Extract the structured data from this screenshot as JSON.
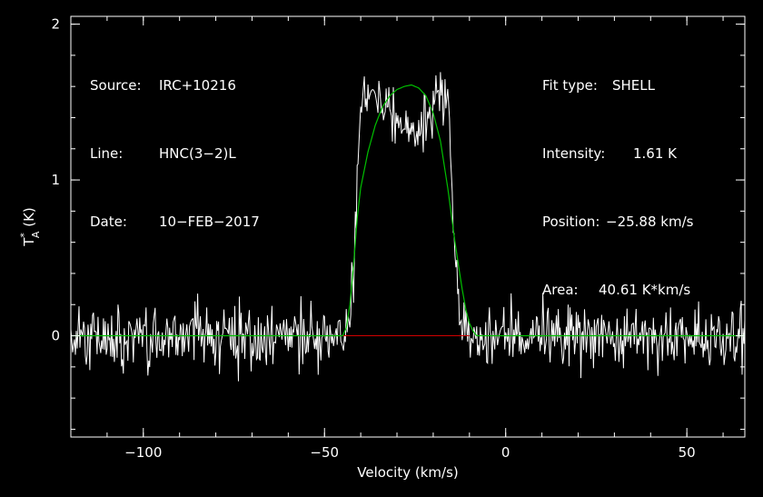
{
  "header_left": {
    "source_label": "Source:",
    "source_value": "IRC+10216",
    "line_label": "Line:",
    "line_value": "HNC(3−2)L",
    "date_label": "Date:",
    "date_value": "10−FEB−2017"
  },
  "header_right": {
    "fit_label": "Fit type:",
    "fit_value": "SHELL",
    "intensity_label": "Intensity:",
    "intensity_value": "1.61 K",
    "position_label": "Position:",
    "position_value": "−25.88 km/s",
    "area_label": "Area:",
    "area_value": "40.61 K*km/s"
  },
  "chart_data": {
    "type": "line",
    "xlabel": "Velocity (km/s)",
    "ylabel": "T*A (K)",
    "xlim": [
      -120,
      66
    ],
    "ylim": [
      -0.65,
      2.05
    ],
    "x_ticks": [
      -100,
      -50,
      0,
      50
    ],
    "x_tick_labels": [
      "−100",
      "−50",
      "0",
      "50"
    ],
    "y_ticks": [
      0,
      1,
      2
    ],
    "y_tick_labels": [
      "0",
      "1",
      "2"
    ],
    "grid": false,
    "colors": {
      "background": "#000000",
      "spectrum": "#ffffff",
      "fit": "#00c000",
      "baseline": "#d00000",
      "axes": "#ffffff"
    },
    "series": [
      {
        "kind": "spectrum",
        "x": [
          -120,
          -110,
          -100,
          -90,
          -80,
          -70,
          -60,
          -50,
          -44,
          -42,
          -40,
          -36,
          -32,
          -28,
          -25,
          -22,
          -18,
          -16,
          -14,
          -12,
          -10,
          -5,
          0,
          10,
          20,
          30,
          40,
          50,
          60,
          66
        ],
        "y": [
          0,
          0,
          0,
          0,
          0,
          0,
          0,
          0,
          0,
          0.3,
          1.5,
          1.55,
          1.45,
          1.35,
          1.3,
          1.4,
          1.55,
          1.6,
          0.5,
          0,
          0,
          0,
          0,
          0,
          0,
          0,
          0,
          0,
          0,
          0
        ],
        "noise_rms": 0.13
      },
      {
        "kind": "fit",
        "x": [
          -120,
          -45,
          -44,
          -43,
          -42,
          -41,
          -40,
          -38,
          -36,
          -34,
          -32,
          -30,
          -28,
          -26,
          -24,
          -22,
          -20,
          -18,
          -16,
          -14,
          -12,
          -11,
          -10,
          -9,
          -8,
          66
        ],
        "y": [
          0,
          0,
          0.05,
          0.2,
          0.45,
          0.75,
          0.95,
          1.18,
          1.35,
          1.47,
          1.54,
          1.58,
          1.6,
          1.61,
          1.59,
          1.54,
          1.43,
          1.25,
          0.95,
          0.6,
          0.3,
          0.17,
          0.08,
          0.03,
          0,
          0
        ]
      },
      {
        "kind": "baseline",
        "x": [
          -45,
          -10
        ],
        "y": [
          0,
          0
        ]
      }
    ]
  }
}
